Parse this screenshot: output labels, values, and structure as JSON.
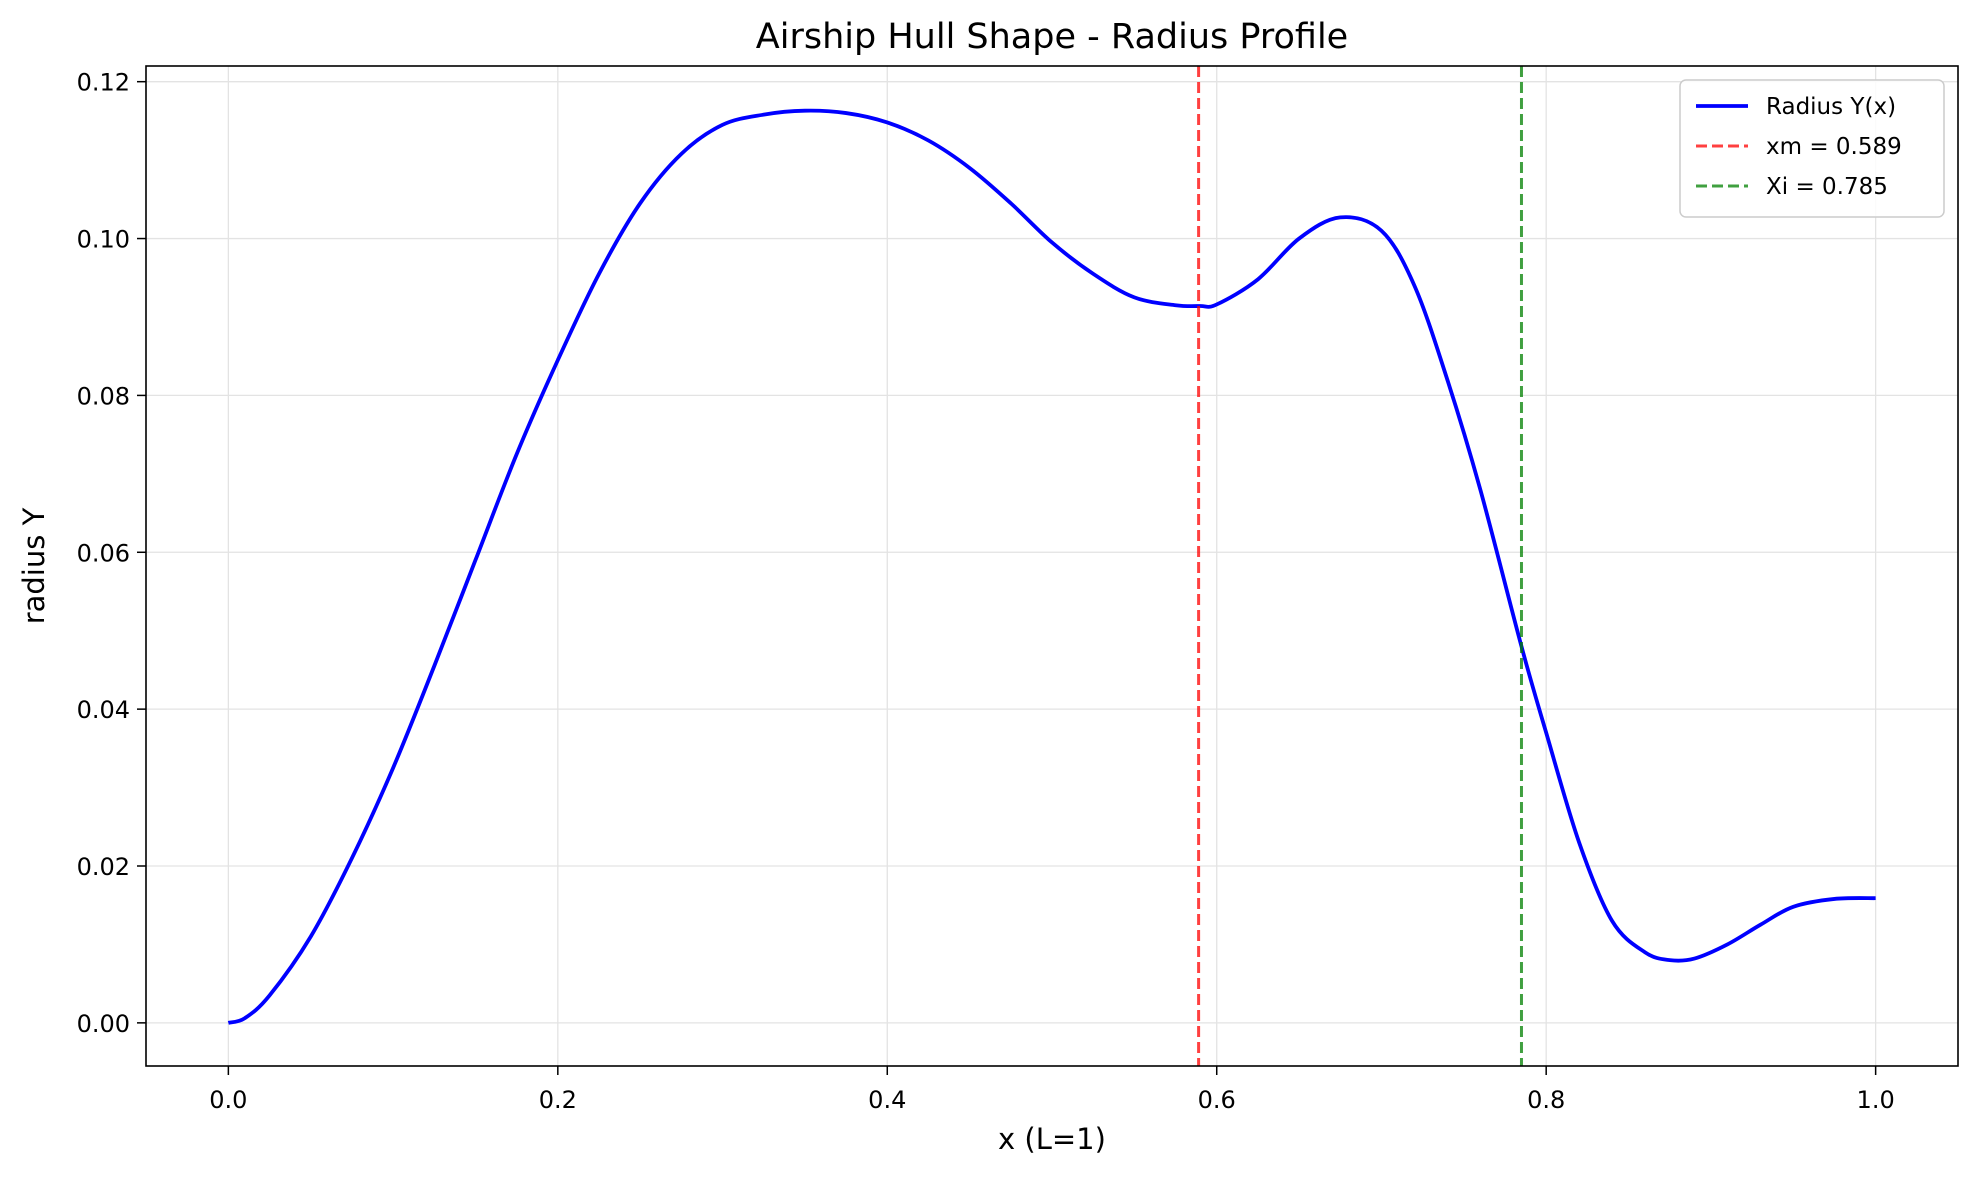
{
  "chart_data": {
    "type": "line",
    "title": "Airship Hull Shape - Radius Profile",
    "xlabel": "x (L=1)",
    "ylabel": "radius Y",
    "xlim": [
      -0.05,
      1.05
    ],
    "ylim": [
      -0.0055,
      0.122
    ],
    "xticks": [
      0.0,
      0.2,
      0.4,
      0.6,
      0.8,
      1.0
    ],
    "xtick_labels": [
      "0.0",
      "0.2",
      "0.4",
      "0.6",
      "0.8",
      "1.0"
    ],
    "yticks": [
      0.0,
      0.02,
      0.04,
      0.06,
      0.08,
      0.1,
      0.12
    ],
    "ytick_labels": [
      "0.00",
      "0.02",
      "0.04",
      "0.06",
      "0.08",
      "0.10",
      "0.12"
    ],
    "grid": true,
    "legend_position": "top-right",
    "series": [
      {
        "name": "Radius Y(x)",
        "color": "#0000ff",
        "style": "solid",
        "x": [
          0.0,
          0.01,
          0.025,
          0.05,
          0.075,
          0.1,
          0.125,
          0.15,
          0.175,
          0.2,
          0.225,
          0.25,
          0.275,
          0.3,
          0.325,
          0.35,
          0.375,
          0.4,
          0.425,
          0.45,
          0.475,
          0.5,
          0.525,
          0.55,
          0.575,
          0.59,
          0.6,
          0.625,
          0.65,
          0.675,
          0.7,
          0.72,
          0.74,
          0.76,
          0.785,
          0.8,
          0.82,
          0.84,
          0.86,
          0.875,
          0.89,
          0.91,
          0.93,
          0.95,
          0.975,
          1.0
        ],
        "y": [
          0.0,
          0.0006,
          0.0035,
          0.011,
          0.021,
          0.0325,
          0.0455,
          0.059,
          0.0725,
          0.0845,
          0.0955,
          0.1045,
          0.1108,
          0.1145,
          0.1158,
          0.1163,
          0.116,
          0.1148,
          0.1125,
          0.109,
          0.1045,
          0.0995,
          0.0955,
          0.0925,
          0.0915,
          0.0914,
          0.0916,
          0.0948,
          0.1,
          0.1027,
          0.101,
          0.094,
          0.082,
          0.068,
          0.048,
          0.037,
          0.023,
          0.013,
          0.009,
          0.008,
          0.0082,
          0.01,
          0.0125,
          0.0148,
          0.0158,
          0.0159
        ]
      },
      {
        "name": "xm = 0.589",
        "color": "#ff0000",
        "style": "dashed",
        "vline": 0.589
      },
      {
        "name": "Xi = 0.785",
        "color": "#008000",
        "style": "dashed",
        "vline": 0.785
      }
    ]
  }
}
